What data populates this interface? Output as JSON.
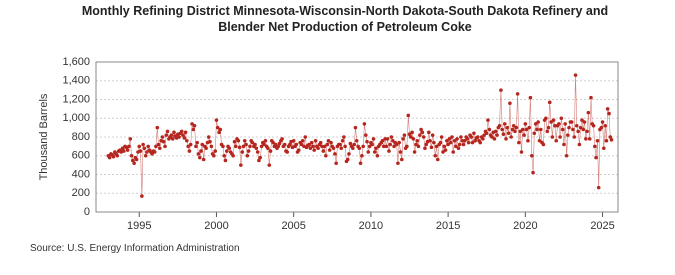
{
  "chart_data": {
    "type": "line",
    "title": "Monthly Refining District Minnesota-Wisconsin-North Dakota-South Dakota Refinery and Blender Net Production of Petroleum Coke",
    "ylabel": "Thousand Barrels",
    "source": "Source: U.S. Energy Information Administration",
    "color": "#b5261e",
    "grid": true,
    "markers": true,
    "xlim": [
      1992.2,
      2026
    ],
    "xticks": [
      1995,
      2000,
      2005,
      2010,
      2015,
      2020,
      2025
    ],
    "ylim": [
      0,
      1600
    ],
    "yticks": [
      0,
      200,
      400,
      600,
      800,
      {
        "value": 1000,
        "label": "1,000"
      },
      {
        "value": 1200,
        "label": "1,200"
      },
      {
        "value": 1400,
        "label": "1,400"
      },
      {
        "value": 1600,
        "label": "1,600"
      }
    ],
    "x": [
      1993,
      1993.08,
      1993.17,
      1993.25,
      1993.33,
      1993.42,
      1993.5,
      1993.58,
      1993.67,
      1993.75,
      1993.83,
      1993.92,
      1994,
      1994.08,
      1994.17,
      1994.25,
      1994.33,
      1994.42,
      1994.5,
      1994.58,
      1994.67,
      1994.75,
      1994.83,
      1994.92,
      1995,
      1995.08,
      1995.17,
      1995.25,
      1995.33,
      1995.42,
      1995.5,
      1995.58,
      1995.67,
      1995.75,
      1995.83,
      1995.92,
      1996,
      1996.08,
      1996.17,
      1996.25,
      1996.33,
      1996.42,
      1996.5,
      1996.58,
      1996.67,
      1996.75,
      1996.83,
      1996.92,
      1997,
      1997.08,
      1997.17,
      1997.25,
      1997.33,
      1997.42,
      1997.5,
      1997.58,
      1997.67,
      1997.75,
      1997.83,
      1997.92,
      1998,
      1998.08,
      1998.17,
      1998.25,
      1998.33,
      1998.42,
      1998.5,
      1998.58,
      1998.67,
      1998.75,
      1998.83,
      1998.92,
      1999,
      1999.08,
      1999.17,
      1999.25,
      1999.33,
      1999.42,
      1999.5,
      1999.58,
      1999.67,
      1999.75,
      1999.83,
      1999.92,
      2000,
      2000.08,
      2000.17,
      2000.25,
      2000.33,
      2000.42,
      2000.5,
      2000.58,
      2000.67,
      2000.75,
      2000.83,
      2000.92,
      2001,
      2001.08,
      2001.17,
      2001.25,
      2001.33,
      2001.42,
      2001.5,
      2001.58,
      2001.67,
      2001.75,
      2001.83,
      2001.92,
      2002,
      2002.08,
      2002.17,
      2002.25,
      2002.33,
      2002.42,
      2002.5,
      2002.58,
      2002.67,
      2002.75,
      2002.83,
      2002.92,
      2003,
      2003.08,
      2003.17,
      2003.25,
      2003.33,
      2003.42,
      2003.5,
      2003.58,
      2003.67,
      2003.75,
      2003.83,
      2003.92,
      2004,
      2004.08,
      2004.17,
      2004.25,
      2004.33,
      2004.42,
      2004.5,
      2004.58,
      2004.67,
      2004.75,
      2004.83,
      2004.92,
      2005,
      2005.08,
      2005.17,
      2005.25,
      2005.33,
      2005.42,
      2005.5,
      2005.58,
      2005.67,
      2005.75,
      2005.83,
      2005.92,
      2006,
      2006.08,
      2006.17,
      2006.25,
      2006.33,
      2006.42,
      2006.5,
      2006.58,
      2006.67,
      2006.75,
      2006.83,
      2006.92,
      2007,
      2007.08,
      2007.17,
      2007.25,
      2007.33,
      2007.42,
      2007.5,
      2007.58,
      2007.67,
      2007.75,
      2007.83,
      2007.92,
      2008,
      2008.08,
      2008.17,
      2008.25,
      2008.33,
      2008.42,
      2008.5,
      2008.58,
      2008.67,
      2008.75,
      2008.83,
      2008.92,
      2009,
      2009.08,
      2009.17,
      2009.25,
      2009.33,
      2009.42,
      2009.5,
      2009.58,
      2009.67,
      2009.75,
      2009.83,
      2009.92,
      2010,
      2010.08,
      2010.17,
      2010.25,
      2010.33,
      2010.42,
      2010.5,
      2010.58,
      2010.67,
      2010.75,
      2010.83,
      2010.92,
      2011,
      2011.08,
      2011.17,
      2011.25,
      2011.33,
      2011.42,
      2011.5,
      2011.58,
      2011.67,
      2011.75,
      2011.83,
      2011.92,
      2012,
      2012.08,
      2012.17,
      2012.25,
      2012.33,
      2012.42,
      2012.5,
      2012.58,
      2012.67,
      2012.75,
      2012.83,
      2012.92,
      2013,
      2013.08,
      2013.17,
      2013.25,
      2013.33,
      2013.42,
      2013.5,
      2013.58,
      2013.67,
      2013.75,
      2013.83,
      2013.92,
      2014,
      2014.08,
      2014.17,
      2014.25,
      2014.33,
      2014.42,
      2014.5,
      2014.58,
      2014.67,
      2014.75,
      2014.83,
      2014.92,
      2015,
      2015.08,
      2015.17,
      2015.25,
      2015.33,
      2015.42,
      2015.5,
      2015.58,
      2015.67,
      2015.75,
      2015.83,
      2015.92,
      2016,
      2016.08,
      2016.17,
      2016.25,
      2016.33,
      2016.42,
      2016.5,
      2016.58,
      2016.67,
      2016.75,
      2016.83,
      2016.92,
      2017,
      2017.08,
      2017.17,
      2017.25,
      2017.33,
      2017.42,
      2017.5,
      2017.58,
      2017.67,
      2017.75,
      2017.83,
      2017.92,
      2018,
      2018.08,
      2018.17,
      2018.25,
      2018.33,
      2018.42,
      2018.5,
      2018.58,
      2018.67,
      2018.75,
      2018.83,
      2018.92,
      2019,
      2019.08,
      2019.17,
      2019.25,
      2019.33,
      2019.42,
      2019.5,
      2019.58,
      2019.67,
      2019.75,
      2019.83,
      2019.92,
      2020,
      2020.08,
      2020.17,
      2020.25,
      2020.33,
      2020.42,
      2020.5,
      2020.58,
      2020.67,
      2020.75,
      2020.83,
      2020.92,
      2021,
      2021.08,
      2021.17,
      2021.25,
      2021.33,
      2021.42,
      2021.5,
      2021.58,
      2021.67,
      2021.75,
      2021.83,
      2021.92,
      2022,
      2022.08,
      2022.17,
      2022.25,
      2022.33,
      2022.42,
      2022.5,
      2022.58,
      2022.67,
      2022.75,
      2022.83,
      2022.92,
      2023,
      2023.08,
      2023.17,
      2023.25,
      2023.33,
      2023.42,
      2023.5,
      2023.58,
      2023.67,
      2023.75,
      2023.83,
      2023.92,
      2024,
      2024.08,
      2024.17,
      2024.25,
      2024.33,
      2024.42,
      2024.5,
      2024.58,
      2024.67,
      2024.75,
      2024.83,
      2024.92,
      2025,
      2025.08,
      2025.17,
      2025.25,
      2025.33,
      2025.42,
      2025.5,
      2025.58
    ],
    "values": [
      600,
      580,
      620,
      610,
      590,
      640,
      620,
      600,
      650,
      660,
      640,
      680,
      650,
      700,
      690,
      660,
      700,
      780,
      600,
      550,
      520,
      580,
      560,
      640,
      700,
      650,
      170,
      720,
      680,
      600,
      640,
      700,
      660,
      640,
      620,
      650,
      640,
      700,
      900,
      720,
      680,
      760,
      800,
      750,
      700,
      820,
      860,
      780,
      800,
      820,
      780,
      850,
      810,
      790,
      830,
      800,
      840,
      860,
      820,
      790,
      850,
      760,
      700,
      650,
      720,
      940,
      880,
      920,
      700,
      740,
      620,
      580,
      650,
      720,
      560,
      700,
      680,
      740,
      800,
      750,
      700,
      620,
      600,
      650,
      980,
      900,
      850,
      880,
      720,
      700,
      600,
      550,
      650,
      700,
      680,
      640,
      620,
      600,
      750,
      700,
      780,
      760,
      690,
      500,
      640,
      700,
      760,
      720,
      600,
      650,
      700,
      760,
      740,
      700,
      720,
      680,
      640,
      550,
      580,
      700,
      740,
      720,
      760,
      700,
      680,
      500,
      650,
      760,
      740,
      700,
      720,
      680,
      700,
      730,
      760,
      780,
      700,
      720,
      650,
      640,
      700,
      720,
      750,
      690,
      760,
      700,
      720,
      640,
      660,
      740,
      720,
      760,
      700,
      800,
      690,
      710,
      720,
      680,
      740,
      700,
      660,
      760,
      700,
      680,
      720,
      740,
      700,
      650,
      700,
      600,
      720,
      760,
      660,
      740,
      700,
      680,
      620,
      520,
      700,
      720,
      720,
      680,
      760,
      800,
      700,
      540,
      560,
      620,
      730,
      700,
      680,
      720,
      900,
      760,
      700,
      680,
      520,
      600,
      700,
      940,
      820,
      750,
      640,
      700,
      740,
      720,
      780,
      640,
      680,
      600,
      700,
      720,
      740,
      760,
      700,
      780,
      700,
      780,
      650,
      720,
      800,
      760,
      700,
      740,
      720,
      520,
      740,
      640,
      560,
      780,
      820,
      680,
      700,
      1030,
      830,
      800,
      850,
      780,
      640,
      720,
      760,
      700,
      820,
      880,
      850,
      800,
      680,
      720,
      750,
      850,
      760,
      690,
      820,
      740,
      600,
      700,
      560,
      720,
      740,
      800,
      640,
      700,
      660,
      760,
      720,
      780,
      740,
      800,
      640,
      760,
      700,
      780,
      680,
      720,
      800,
      760,
      720,
      760,
      800,
      780,
      740,
      820,
      800,
      740,
      840,
      760,
      790,
      800,
      760,
      740,
      800,
      780,
      820,
      860,
      840,
      980,
      880,
      820,
      800,
      850,
      780,
      860,
      820,
      900,
      920,
      1300,
      880,
      830,
      940,
      780,
      900,
      840,
      1160,
      800,
      880,
      920,
      860,
      900,
      1260,
      740,
      860,
      640,
      880,
      820,
      940,
      880,
      760,
      900,
      1220,
      600,
      420,
      840,
      940,
      880,
      960,
      760,
      880,
      740,
      720,
      980,
      1000,
      860,
      900,
      1170,
      960,
      800,
      980,
      920,
      760,
      920,
      940,
      800,
      1000,
      880,
      720,
      940,
      600,
      820,
      900,
      960,
      960,
      880,
      800,
      1460,
      920,
      860,
      720,
      900,
      980,
      880,
      960,
      780,
      860,
      1060,
      780,
      1220,
      940,
      920,
      700,
      580,
      760,
      260,
      880,
      900,
      960,
      680,
      920,
      760,
      1100,
      1050,
      800,
      770
    ]
  }
}
